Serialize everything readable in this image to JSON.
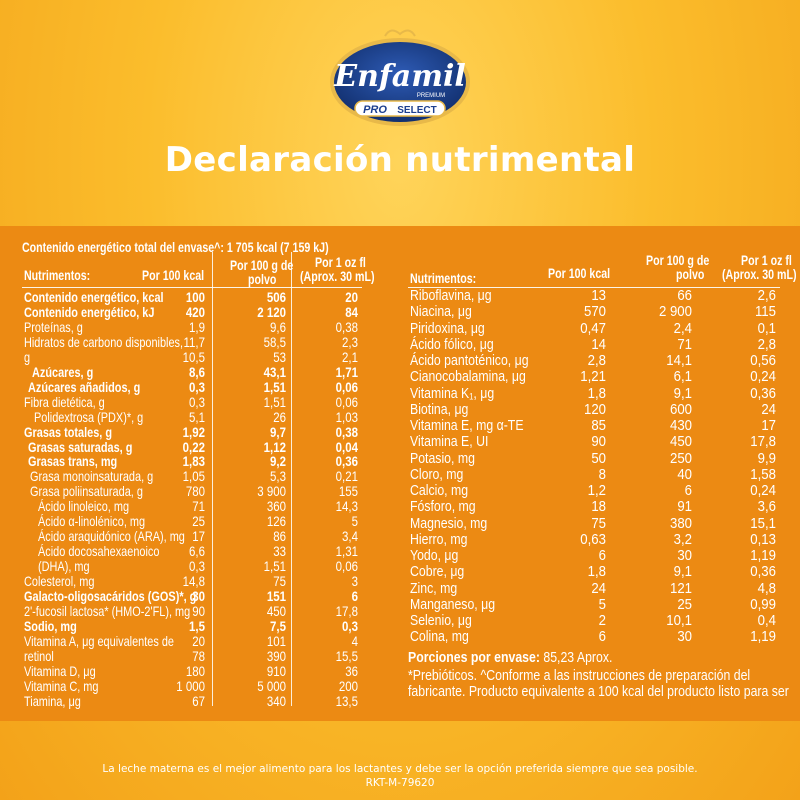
{
  "brand": {
    "name": "Enfamil",
    "sub": "PREMIUM",
    "badge_pro": "PRO",
    "badge_select": "SELECT"
  },
  "title": "Declaración nutrimental",
  "energy_total": "Contenido energético total del envase^: 1 705 kcal (7 159 kJ)",
  "headers": {
    "nutrients": "Nutrimentos:",
    "per100kcal": "Por 100 kcal",
    "per100g_1": "Por 100 g de",
    "per100g_2": "polvo",
    "per1oz_1": "Por 1 oz fl",
    "per1oz_2": "(Aprox. 30 mL)"
  },
  "left_rows": [
    {
      "n": "Contenido energético, kcal",
      "v1": "100",
      "v2": "506",
      "v3": "20"
    },
    {
      "n": "Contenido energético, kJ",
      "v1": "420",
      "v2": "2 120",
      "v3": "84"
    },
    {
      "n": "Proteínas, g",
      "v1": "1,9",
      "v2": "9,6",
      "v3": "0,38"
    },
    {
      "n": "Hidratos de carbono disponibles,",
      "v1": "11,7",
      "v2": "58,5",
      "v3": "2,3"
    },
    {
      "n": "g",
      "v1": "10,5",
      "v2": "53",
      "v3": "2,1"
    },
    {
      "n": "Azúcares, g",
      "v1": "8,6",
      "v2": "43,1",
      "v3": "1,71"
    },
    {
      "n": "Azúcares añadidos, g",
      "v1": "0,3",
      "v2": "1,51",
      "v3": "0,06"
    },
    {
      "n": "Fibra dietética, g",
      "v1": "0,3",
      "v2": "1,51",
      "v3": "0,06"
    },
    {
      "n": "Polidextrosa (PDX)*, g",
      "v1": "5,1",
      "v2": "26",
      "v3": "1,03"
    },
    {
      "n": "Grasas totales, g",
      "v1": "1,92",
      "v2": "9,7",
      "v3": "0,38"
    },
    {
      "n": "Grasas saturadas, g",
      "v1": "0,22",
      "v2": "1,12",
      "v3": "0,04"
    },
    {
      "n": "Grasas trans, mg",
      "v1": "1,83",
      "v2": "9,2",
      "v3": "0,36"
    },
    {
      "n": "Grasa monoinsaturada, g",
      "v1": "1,05",
      "v2": "5,3",
      "v3": "0,21"
    },
    {
      "n": "Grasa poliinsaturada, g",
      "v1": "780",
      "v2": "3 900",
      "v3": "155"
    },
    {
      "n": "Ácido linoleico, mg",
      "v1": "71",
      "v2": "360",
      "v3": "14,3"
    },
    {
      "n": "Ácido α-linolénico, mg",
      "v1": "25",
      "v2": "126",
      "v3": "5"
    },
    {
      "n": "Ácido araquidónico (ARA), mg",
      "v1": "17",
      "v2": "86",
      "v3": "3,4"
    },
    {
      "n": "Ácido docosahexaenoico",
      "v1": "6,6",
      "v2": "33",
      "v3": "1,31"
    },
    {
      "n": "(DHA), mg",
      "v1": "0,3",
      "v2": "1,51",
      "v3": "0,06"
    },
    {
      "n": "Colesterol, mg",
      "v1": "14,8",
      "v2": "75",
      "v3": "3"
    },
    {
      "n": "Galacto-oligosacáridos (GOS)*, g",
      "v1": "30",
      "v2": "151",
      "v3": "6"
    },
    {
      "n": "2'-fucosil lactosa* (HMO-2'FL), mg",
      "v1": "90",
      "v2": "450",
      "v3": "17,8"
    },
    {
      "n": "Sodio, mg",
      "v1": "1,5",
      "v2": "7,5",
      "v3": "0,3"
    },
    {
      "n": "Vitamina A, μg equivalentes de",
      "v1": "20",
      "v2": "101",
      "v3": "4"
    },
    {
      "n": "retinol",
      "v1": "78",
      "v2": "390",
      "v3": "15,5"
    },
    {
      "n": "Vitamina D, μg",
      "v1": "180",
      "v2": "910",
      "v3": "36"
    },
    {
      "n": "Vitamina C, mg",
      "v1": "1 000",
      "v2": "5 000",
      "v3": "200"
    },
    {
      "n": "Tiamina, μg",
      "v1": "67",
      "v2": "340",
      "v3": "13,5"
    }
  ],
  "right_rows": [
    {
      "n": "Riboflavina, μg",
      "v1": "13",
      "v2": "66",
      "v3": "2,6"
    },
    {
      "n": "Niacina, μg",
      "v1": "570",
      "v2": "2 900",
      "v3": "115"
    },
    {
      "n": "Piridoxina, μg",
      "v1": "0,47",
      "v2": "2,4",
      "v3": "0,1"
    },
    {
      "n": "Ácido fólico, μg",
      "v1": "14",
      "v2": "71",
      "v3": "2,8"
    },
    {
      "n": "Ácido pantoténico, μg",
      "v1": "2,8",
      "v2": "14,1",
      "v3": "0,56"
    },
    {
      "n": "Cianocobalamina, μg",
      "v1": "1,21",
      "v2": "6,1",
      "v3": "0,24"
    },
    {
      "n": "Vitamina K₁, μg",
      "v1": "1,8",
      "v2": "9,1",
      "v3": "0,36"
    },
    {
      "n": "Biotina, μg",
      "v1": "120",
      "v2": "600",
      "v3": "24"
    },
    {
      "n": "Vitamina E, mg α-TE",
      "v1": "85",
      "v2": "430",
      "v3": "17"
    },
    {
      "n": "Vitamina E, UI",
      "v1": "90",
      "v2": "450",
      "v3": "17,8"
    },
    {
      "n": "Potasio, mg",
      "v1": "50",
      "v2": "250",
      "v3": "9,9"
    },
    {
      "n": "Cloro, mg",
      "v1": "8",
      "v2": "40",
      "v3": "1,58"
    },
    {
      "n": "Calcio, mg",
      "v1": "1,2",
      "v2": "6",
      "v3": "0,24"
    },
    {
      "n": "Fósforo, mg",
      "v1": "18",
      "v2": "91",
      "v3": "3,6"
    },
    {
      "n": "Magnesio, mg",
      "v1": "75",
      "v2": "380",
      "v3": "15,1"
    },
    {
      "n": "Hierro, mg",
      "v1": "0,63",
      "v2": "3,2",
      "v3": "0,13"
    },
    {
      "n": "Yodo, μg",
      "v1": "6",
      "v2": "30",
      "v3": "1,19"
    },
    {
      "n": "Cobre, μg",
      "v1": "1,8",
      "v2": "9,1",
      "v3": "0,36"
    },
    {
      "n": "Zinc, mg",
      "v1": "24",
      "v2": "121",
      "v3": "4,8"
    },
    {
      "n": "Manganeso, μg",
      "v1": "5",
      "v2": "25",
      "v3": "0,99"
    },
    {
      "n": "Selenio, μg",
      "v1": "2",
      "v2": "10,1",
      "v3": "0,4"
    },
    {
      "n": "Colina, mg",
      "v1": "6",
      "v2": "30",
      "v3": "1,19"
    }
  ],
  "servings_label": "Porciones por envase:",
  "servings_value": "85,23 Aprox.",
  "note_1": "*Prebióticos. ^Conforme a las instrucciones de preparación del",
  "note_2": "fabricante. Producto equivalente a 100 kcal del producto listo para ser",
  "footer_1": "La leche materna es el mejor alimento para los lactantes y debe ser la opción preferida siempre que sea posible.",
  "footer_2": "RKT-M-79620",
  "colors": {
    "background": "#fbbd2c",
    "panel": "#ec8a13",
    "text": "#ffffff",
    "logo_blue": "#1c3f8f",
    "logo_gold": "#e8b949"
  }
}
